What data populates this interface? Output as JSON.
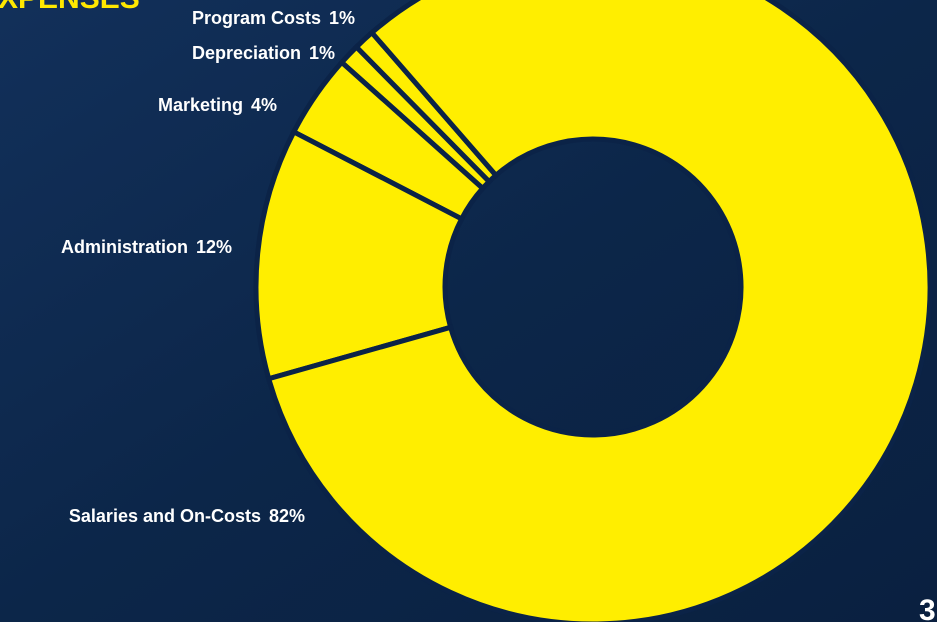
{
  "chart_data": {
    "type": "donut",
    "title": "EXPENSES",
    "categories": [
      "Program Costs",
      "Depreciation",
      "Marketing",
      "Administration",
      "Salaries and On-Costs"
    ],
    "values": [
      1,
      1,
      4,
      12,
      82
    ],
    "value_labels": [
      "1%",
      "1%",
      "4%",
      "12%",
      "82%"
    ],
    "color": "#ffee00"
  },
  "page_number": "3"
}
